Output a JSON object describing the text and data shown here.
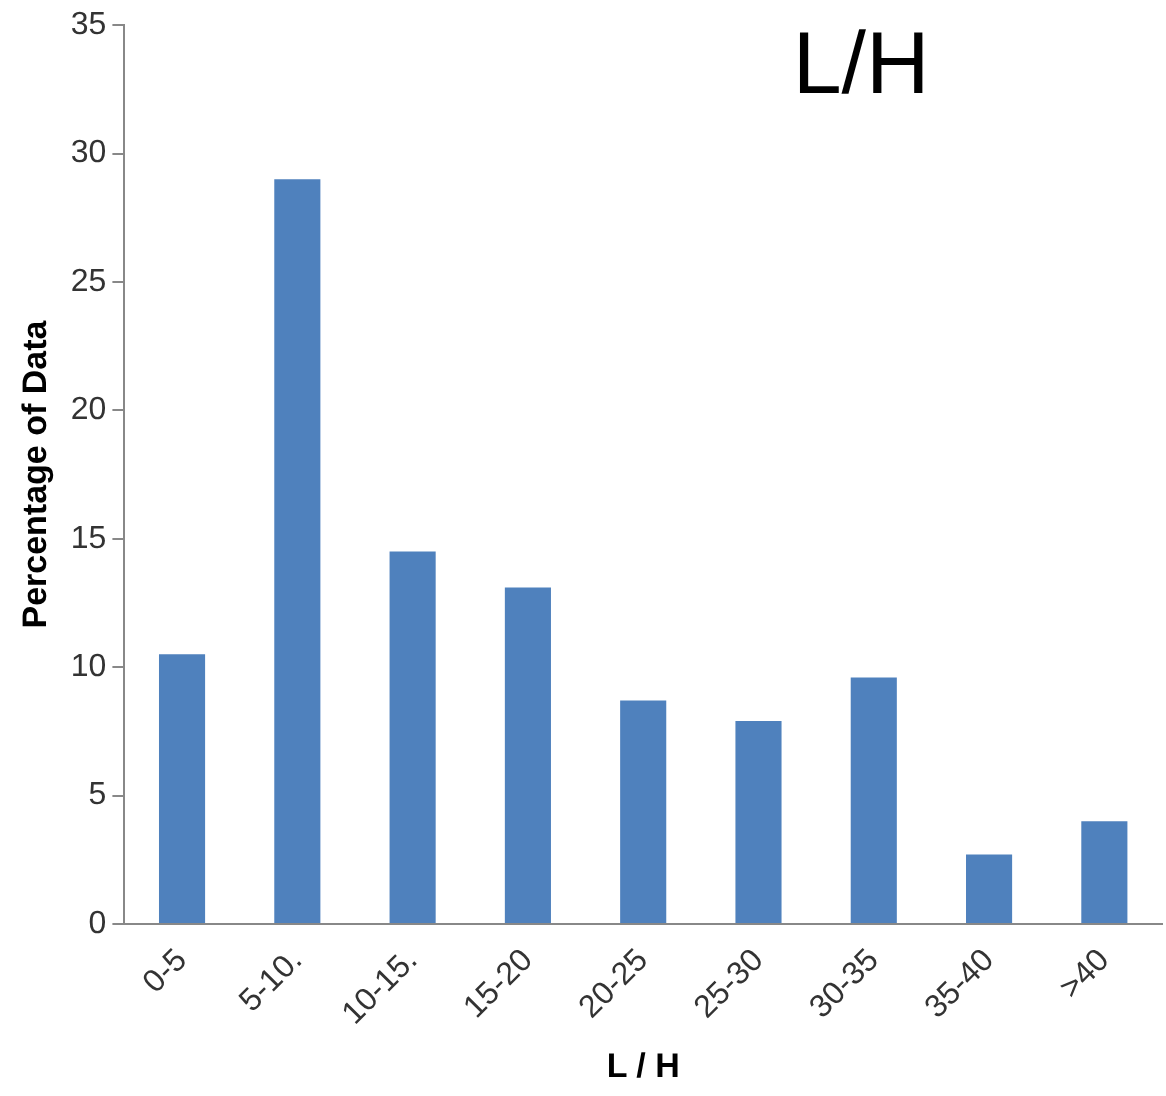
{
  "chart_data": {
    "type": "bar",
    "title": "L/H",
    "xlabel": "L / H",
    "ylabel": "Percentage of Data",
    "categories": [
      "0-5",
      "5-10.",
      "10-15.",
      "15-20",
      "20-25",
      "25-30",
      "30-35",
      "35-40",
      ">40"
    ],
    "values": [
      10.5,
      29.0,
      14.5,
      13.1,
      8.7,
      7.9,
      9.6,
      2.7,
      4.0
    ],
    "color": "#4f81bd",
    "ylim": [
      0,
      35
    ],
    "yticks": [
      0,
      5,
      10,
      15,
      20,
      25,
      30,
      35
    ],
    "grid": false,
    "legend": false
  }
}
